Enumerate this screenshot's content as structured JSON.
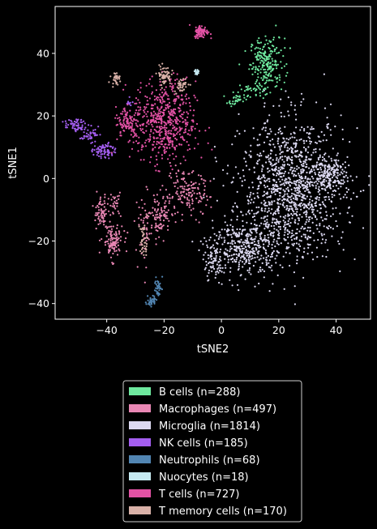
{
  "chart_data": {
    "type": "scatter",
    "xlabel": "tSNE2",
    "ylabel": "tSNE1",
    "xlim": [
      -58,
      52
    ],
    "ylim": [
      -45,
      55
    ],
    "x_ticks": [
      -40,
      -20,
      0,
      20,
      40
    ],
    "y_ticks": [
      -40,
      -20,
      0,
      20,
      40
    ],
    "grid": false,
    "background": "#000000",
    "legend_position": "below",
    "series": [
      {
        "name": "B cells (n=288)",
        "color": "#6ee89e",
        "count": 288,
        "clusters": [
          {
            "cx": 16,
            "cy": 37,
            "sx": 3.0,
            "sy": 4.0,
            "n": 220
          },
          {
            "cx": 10,
            "cy": 28,
            "sx": 3.0,
            "sy": 1.2,
            "n": 40
          },
          {
            "cx": 5,
            "cy": 25,
            "sx": 1.5,
            "sy": 0.8,
            "n": 28
          }
        ]
      },
      {
        "name": "Macrophages (n=497)",
        "color": "#e987b4",
        "count": 497,
        "clusters": [
          {
            "cx": -42,
            "cy": -11,
            "sx": 1.2,
            "sy": 2.5,
            "n": 70
          },
          {
            "cx": -38,
            "cy": -20,
            "sx": 1.8,
            "sy": 2.8,
            "n": 110
          },
          {
            "cx": -21,
            "cy": -12,
            "sx": 1.5,
            "sy": 3.0,
            "n": 80
          },
          {
            "cx": -12,
            "cy": -5,
            "sx": 4.0,
            "sy": 3.5,
            "n": 150
          },
          {
            "cx": -26,
            "cy": -15,
            "sx": 2.0,
            "sy": 5.5,
            "n": 60
          },
          {
            "cx": -37,
            "cy": -8,
            "sx": 1.0,
            "sy": 2.0,
            "n": 27
          }
        ]
      },
      {
        "name": "Microglia (n=1814)",
        "color": "#dcd9f1",
        "count": 1814,
        "clusters": [
          {
            "cx": 25,
            "cy": -3,
            "sx": 9.0,
            "sy": 11.0,
            "n": 1200
          },
          {
            "cx": 8,
            "cy": -22,
            "sx": 6.0,
            "sy": 5.0,
            "n": 400
          },
          {
            "cx": 38,
            "cy": 1,
            "sx": 3.5,
            "sy": 2.5,
            "n": 150
          },
          {
            "cx": -3,
            "cy": -27,
            "sx": 2.0,
            "sy": 3.0,
            "n": 64
          }
        ]
      },
      {
        "name": "NK cells (n=185)",
        "color": "#a45ef0",
        "count": 185,
        "clusters": [
          {
            "cx": -51,
            "cy": 17,
            "sx": 1.8,
            "sy": 1.0,
            "n": 60
          },
          {
            "cx": -46,
            "cy": 14,
            "sx": 1.5,
            "sy": 1.2,
            "n": 40
          },
          {
            "cx": -41,
            "cy": 9,
            "sx": 1.8,
            "sy": 1.2,
            "n": 75
          },
          {
            "cx": -32,
            "cy": 24.5,
            "sx": 0.6,
            "sy": 0.8,
            "n": 10
          }
        ]
      },
      {
        "name": "Neutrophils (n=68)",
        "color": "#5286b3",
        "count": 68,
        "clusters": [
          {
            "cx": -22,
            "cy": -35,
            "sx": 0.7,
            "sy": 1.5,
            "n": 35
          },
          {
            "cx": -24.5,
            "cy": -39,
            "sx": 0.8,
            "sy": 0.9,
            "n": 33
          }
        ]
      },
      {
        "name": "Nuocytes (n=18)",
        "color": "#c6eaf2",
        "count": 18,
        "clusters": [
          {
            "cx": -8.5,
            "cy": 34,
            "sx": 0.4,
            "sy": 0.5,
            "n": 18
          }
        ]
      },
      {
        "name": "T cells (n=727)",
        "color": "#e352a5",
        "count": 727,
        "clusters": [
          {
            "cx": -20,
            "cy": 18,
            "sx": 5.5,
            "sy": 6.5,
            "n": 560
          },
          {
            "cx": -33,
            "cy": 18,
            "sx": 2.0,
            "sy": 2.5,
            "n": 80
          },
          {
            "cx": -7,
            "cy": 47,
            "sx": 1.2,
            "sy": 1.0,
            "n": 87
          }
        ]
      },
      {
        "name": "T memory cells (n=170)",
        "color": "#d9b1a8",
        "count": 170,
        "clusters": [
          {
            "cx": -20,
            "cy": 33,
            "sx": 1.2,
            "sy": 1.5,
            "n": 60
          },
          {
            "cx": -14,
            "cy": 30,
            "sx": 1.2,
            "sy": 1.2,
            "n": 40
          },
          {
            "cx": -37,
            "cy": 32,
            "sx": 0.8,
            "sy": 0.9,
            "n": 30
          },
          {
            "cx": -27,
            "cy": -20,
            "sx": 0.7,
            "sy": 3.0,
            "n": 40
          }
        ]
      }
    ]
  }
}
